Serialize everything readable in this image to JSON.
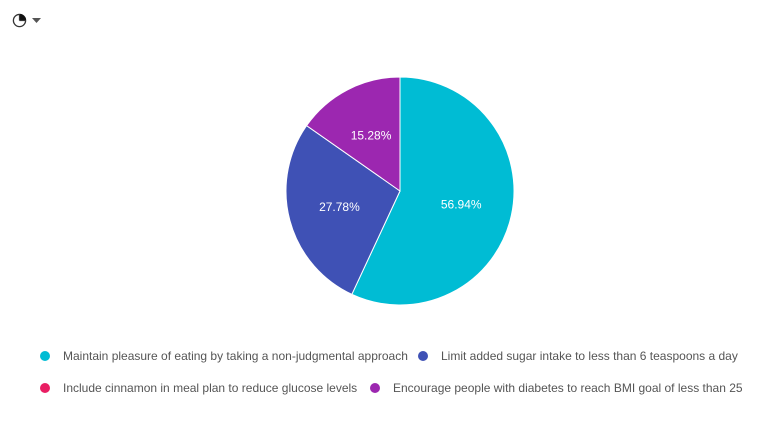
{
  "chart_data": {
    "type": "pie",
    "title": "",
    "start_angle": "top, clockwise",
    "slices": [
      {
        "label": "Maintain pleasure of eating by taking a non-judgmental approach",
        "value": 56.94,
        "display": "56.94%",
        "color": "#00BCD4"
      },
      {
        "label": "Include cinnamon in meal plan to reduce glucose levels",
        "value": 0,
        "display": "",
        "color": "#E91E63"
      },
      {
        "label": "Limit added sugar intake to less than 6 teaspoons a day",
        "value": 27.78,
        "display": "27.78%",
        "color": "#3F51B5"
      },
      {
        "label": "Encourage people with diabetes to reach BMI goal of less than 25",
        "value": 15.28,
        "display": "15.28%",
        "color": "#9C27B0"
      }
    ],
    "legend_placement": "bottom"
  },
  "menu": {
    "icon": "pie-chart-icon",
    "dropdown": "caret-down-icon"
  }
}
